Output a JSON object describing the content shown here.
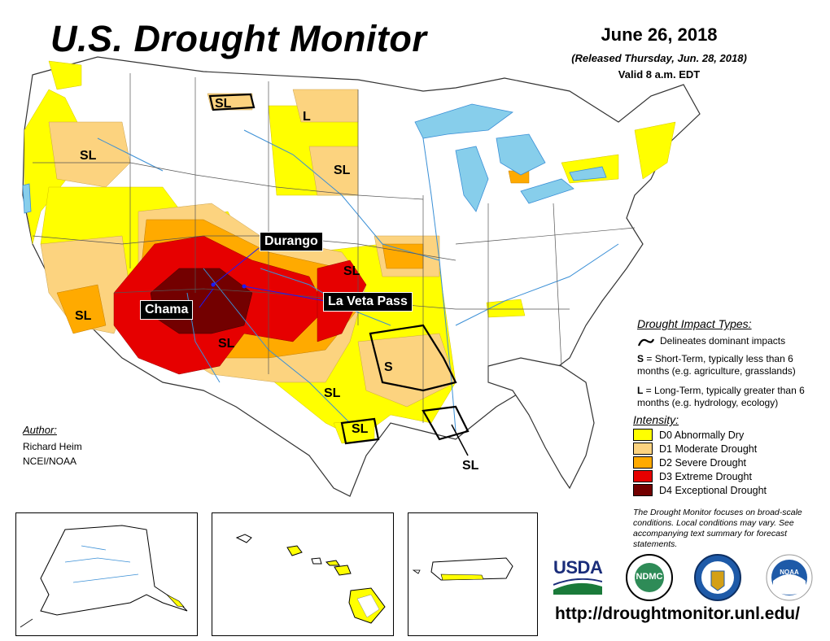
{
  "header": {
    "title": "U.S. Drought Monitor",
    "date": "June 26, 2018",
    "released": "(Released Thursday, Jun. 28, 2018)",
    "valid": "Valid 8 a.m. EDT"
  },
  "map": {
    "impact_labels": [
      "SL",
      "L",
      "SL",
      "SL",
      "SL",
      "SL",
      "SL",
      "S",
      "SL",
      "SL",
      "SL"
    ],
    "callouts": {
      "durango": "Durango",
      "chama": "Chama",
      "la_veta_pass": "La Veta Pass"
    }
  },
  "legend": {
    "impact_title": "Drought Impact Types:",
    "delineates": "Delineates dominant impacts",
    "short_term_letter": "S",
    "short_term_text": " = Short-Term, typically less than 6 months (e.g. agriculture, grasslands)",
    "long_term_letter": "L",
    "long_term_text": " = Long-Term, typically greater than 6 months (e.g. hydrology, ecology)",
    "intensity_title": "Intensity:",
    "intensity": [
      {
        "label": "D0 Abnormally Dry",
        "color": "#FFFF00"
      },
      {
        "label": "D1 Moderate Drought",
        "color": "#FCD37F"
      },
      {
        "label": "D2 Severe Drought",
        "color": "#FFAA00"
      },
      {
        "label": "D3 Extreme Drought",
        "color": "#E60000"
      },
      {
        "label": "D4 Exceptional Drought",
        "color": "#730000"
      }
    ]
  },
  "author": {
    "label": "Author:",
    "name": "Richard Heim",
    "org": "NCEI/NOAA"
  },
  "note": "The Drought Monitor focuses on broad-scale conditions. Local conditions may vary. See accompanying text summary for forecast statements.",
  "logos": {
    "usda": "USDA",
    "ndmc": "NDMC",
    "noaa": "NOAA"
  },
  "url": "http://droughtmonitor.unl.edu/",
  "colors": {
    "water": "#87CEEB",
    "river": "#3a8fd6",
    "state_border": "#555555"
  }
}
